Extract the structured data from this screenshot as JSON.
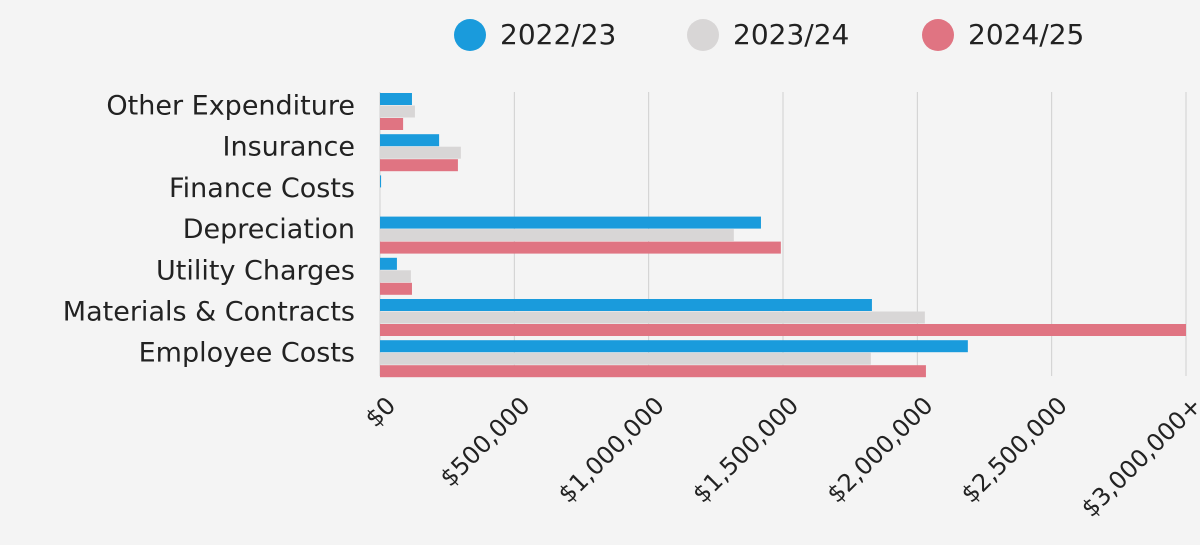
{
  "chart_data": {
    "type": "bar",
    "orientation": "horizontal",
    "categories": [
      "Other Expenditure",
      "Insurance",
      "Finance Costs",
      "Depreciation",
      "Utility Charges",
      "Materials & Contracts",
      "Employee Costs"
    ],
    "series": [
      {
        "name": "2022/23",
        "color": "#1a9bdc",
        "values": [
          119000,
          220000,
          4000,
          1418000,
          63000,
          1831000,
          2188000
        ]
      },
      {
        "name": "2023/24",
        "color": "#d8d6d6",
        "values": [
          130000,
          301000,
          1000,
          1317000,
          115000,
          2028000,
          1827000
        ]
      },
      {
        "name": "2024/25",
        "color": "#e07482",
        "values": [
          86000,
          290000,
          0,
          1492000,
          119000,
          3000000,
          2032000
        ]
      }
    ],
    "xlim": [
      0,
      3000000
    ],
    "xticks": [
      {
        "value": 0,
        "label": "$0"
      },
      {
        "value": 500000,
        "label": "$500,000"
      },
      {
        "value": 1000000,
        "label": "$1,000,000"
      },
      {
        "value": 1500000,
        "label": "$1,500,000"
      },
      {
        "value": 2000000,
        "label": "$2,000,000"
      },
      {
        "value": 2500000,
        "label": "$2,500,000"
      },
      {
        "value": 3000000,
        "label": "$3,000,000+"
      }
    ],
    "grid": true,
    "legend": "top"
  }
}
